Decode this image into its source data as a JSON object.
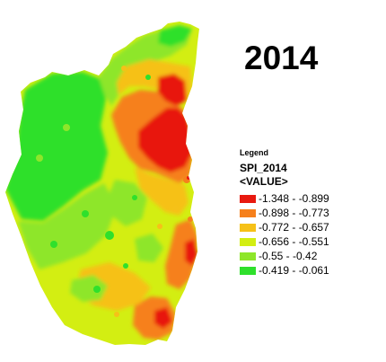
{
  "title": "2014",
  "legend": {
    "title": "Legend",
    "layer": "SPI_2014",
    "field": "<VALUE>",
    "classes": [
      {
        "label": "-1.348 - -0.899",
        "color": "#e8190f"
      },
      {
        "label": "-0.898 - -0.773",
        "color": "#f6801c"
      },
      {
        "label": "-0.772 - -0.657",
        "color": "#f6c118"
      },
      {
        "label": "-0.656 - -0.551",
        "color": "#d3ee12"
      },
      {
        "label": "-0.55 - -0.42",
        "color": "#8ee62a"
      },
      {
        "label": "-0.419 - -0.061",
        "color": "#2fe02c"
      }
    ]
  }
}
